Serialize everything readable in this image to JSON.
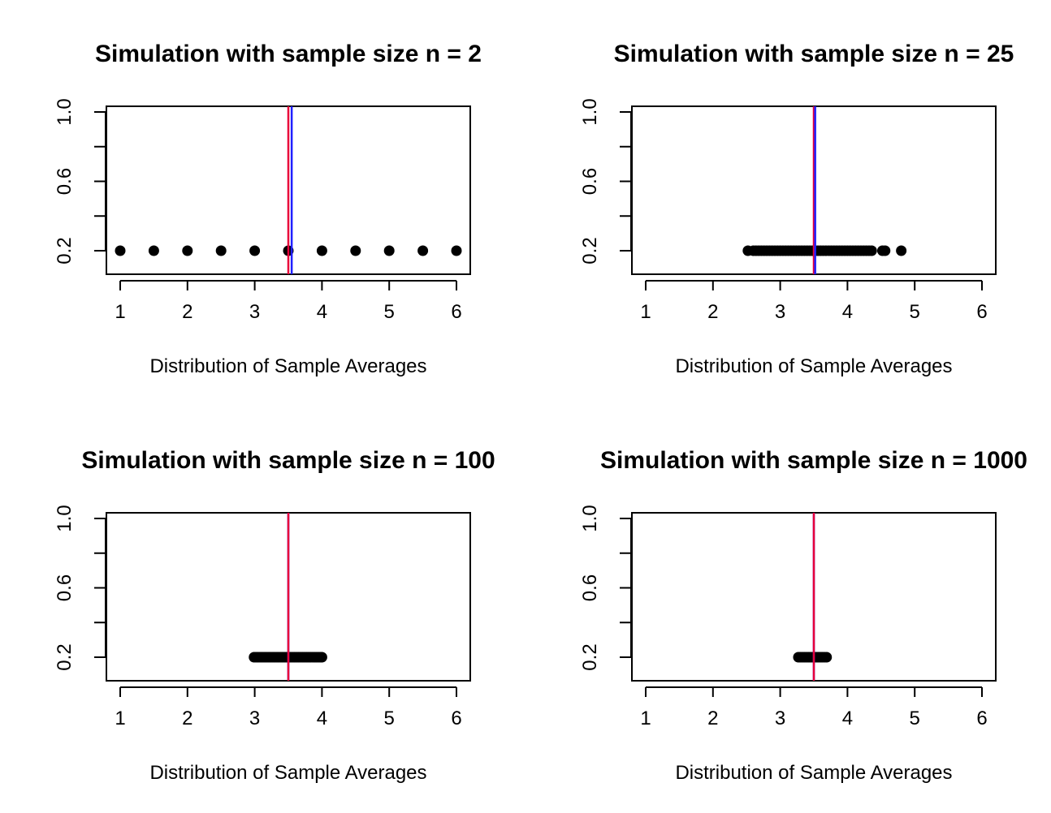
{
  "colors": {
    "red": "#e8003a",
    "blue": "#2020ff",
    "points": "#000000"
  },
  "chart_data": [
    {
      "type": "scatter",
      "title": "Simulation with sample size n = 2",
      "xlabel": "Distribution of Sample Averages",
      "ylabel": "",
      "xlim": [
        1,
        6
      ],
      "ylim": [
        0.2,
        1.0
      ],
      "xticks": [
        "1",
        "2",
        "3",
        "4",
        "5",
        "6"
      ],
      "yticks": [
        "0.2",
        "0.6",
        "1.0"
      ],
      "grid": false,
      "x": [
        1,
        1.5,
        2,
        2.5,
        3,
        3.5,
        4,
        4.5,
        5,
        5.5,
        6
      ],
      "y": 0.2,
      "vlines": [
        {
          "x": 3.5,
          "color": "red"
        },
        {
          "x": 3.55,
          "color": "blue"
        }
      ]
    },
    {
      "type": "scatter",
      "title": "Simulation with sample size n = 25",
      "xlabel": "Distribution of Sample Averages",
      "ylabel": "",
      "xlim": [
        1,
        6
      ],
      "ylim": [
        0.2,
        1.0
      ],
      "xticks": [
        "1",
        "2",
        "3",
        "4",
        "5",
        "6"
      ],
      "yticks": [
        "0.2",
        "0.6",
        "1.0"
      ],
      "grid": false,
      "x": [
        2.52,
        2.6,
        2.64,
        2.68,
        2.72,
        2.76,
        2.8,
        2.84,
        2.88,
        2.92,
        2.96,
        3.0,
        3.04,
        3.08,
        3.12,
        3.16,
        3.2,
        3.24,
        3.28,
        3.32,
        3.36,
        3.4,
        3.44,
        3.48,
        3.52,
        3.56,
        3.6,
        3.64,
        3.68,
        3.72,
        3.76,
        3.8,
        3.84,
        3.88,
        3.92,
        3.96,
        4.0,
        4.04,
        4.08,
        4.12,
        4.16,
        4.2,
        4.24,
        4.28,
        4.32,
        4.36,
        4.52,
        4.56,
        4.8
      ],
      "y": 0.2,
      "vlines": [
        {
          "x": 3.5,
          "color": "red"
        },
        {
          "x": 3.52,
          "color": "blue"
        }
      ]
    },
    {
      "type": "scatter",
      "title": "Simulation with sample size n = 100",
      "xlabel": "Distribution of Sample Averages",
      "ylabel": "",
      "xlim": [
        1,
        6
      ],
      "ylim": [
        0.2,
        1.0
      ],
      "xticks": [
        "1",
        "2",
        "3",
        "4",
        "5",
        "6"
      ],
      "yticks": [
        "0.2",
        "0.6",
        "1.0"
      ],
      "grid": false,
      "x": [
        2.99,
        3.02,
        3.05,
        3.08,
        3.11,
        3.14,
        3.17,
        3.2,
        3.23,
        3.26,
        3.29,
        3.32,
        3.35,
        3.38,
        3.41,
        3.44,
        3.47,
        3.5,
        3.53,
        3.56,
        3.59,
        3.62,
        3.65,
        3.68,
        3.71,
        3.74,
        3.77,
        3.8,
        3.83,
        3.86,
        3.89,
        3.92,
        3.95,
        3.98,
        4.0
      ],
      "y": 0.2,
      "vlines": [
        {
          "x": 3.5,
          "color": "blue"
        },
        {
          "x": 3.5,
          "color": "red"
        }
      ]
    },
    {
      "type": "scatter",
      "title": "Simulation with sample size n = 1000",
      "xlabel": "Distribution of Sample Averages",
      "ylabel": "",
      "xlim": [
        1,
        6
      ],
      "ylim": [
        0.2,
        1.0
      ],
      "xticks": [
        "1",
        "2",
        "3",
        "4",
        "5",
        "6"
      ],
      "yticks": [
        "0.2",
        "0.6",
        "1.0"
      ],
      "grid": false,
      "x": [
        3.27,
        3.3,
        3.33,
        3.36,
        3.39,
        3.42,
        3.45,
        3.48,
        3.51,
        3.54,
        3.57,
        3.6,
        3.63,
        3.66,
        3.69
      ],
      "y": 0.2,
      "vlines": [
        {
          "x": 3.5,
          "color": "blue"
        },
        {
          "x": 3.5,
          "color": "red"
        }
      ]
    }
  ]
}
